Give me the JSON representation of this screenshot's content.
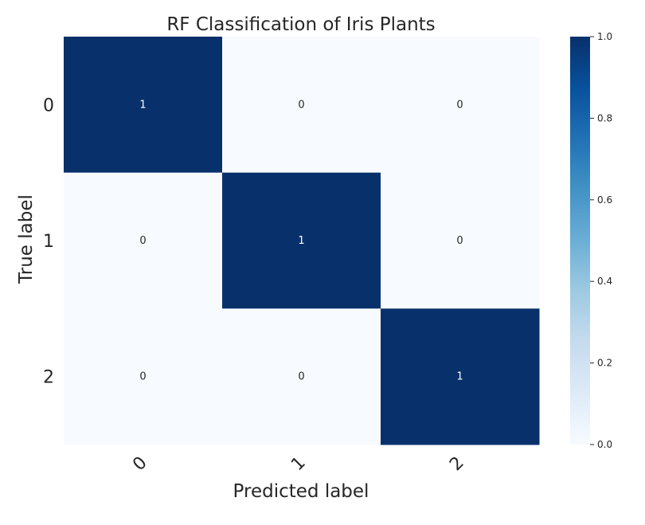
{
  "chart_data": {
    "type": "heatmap",
    "title": "RF Classification of Iris Plants",
    "xlabel": "Predicted label",
    "ylabel": "True label",
    "x_categories": [
      "0",
      "1",
      "2"
    ],
    "y_categories": [
      "0",
      "1",
      "2"
    ],
    "values": [
      [
        1,
        0,
        0
      ],
      [
        0,
        1,
        0
      ],
      [
        0,
        0,
        1
      ]
    ],
    "cell_labels": [
      [
        "1",
        "0",
        "0"
      ],
      [
        "0",
        "1",
        "0"
      ],
      [
        "0",
        "0",
        "1"
      ]
    ],
    "colormap": "Blues",
    "color_low": "#f7fbff",
    "color_high": "#08306b",
    "colorbar": {
      "range": [
        0.0,
        1.0
      ],
      "ticks": [
        0.0,
        0.2,
        0.4,
        0.6,
        0.8,
        1.0
      ],
      "tick_labels": [
        "0.0",
        "0.2",
        "0.4",
        "0.6",
        "0.8",
        "1.0"
      ]
    },
    "grid": false,
    "x_tick_rotation_deg": 45
  }
}
